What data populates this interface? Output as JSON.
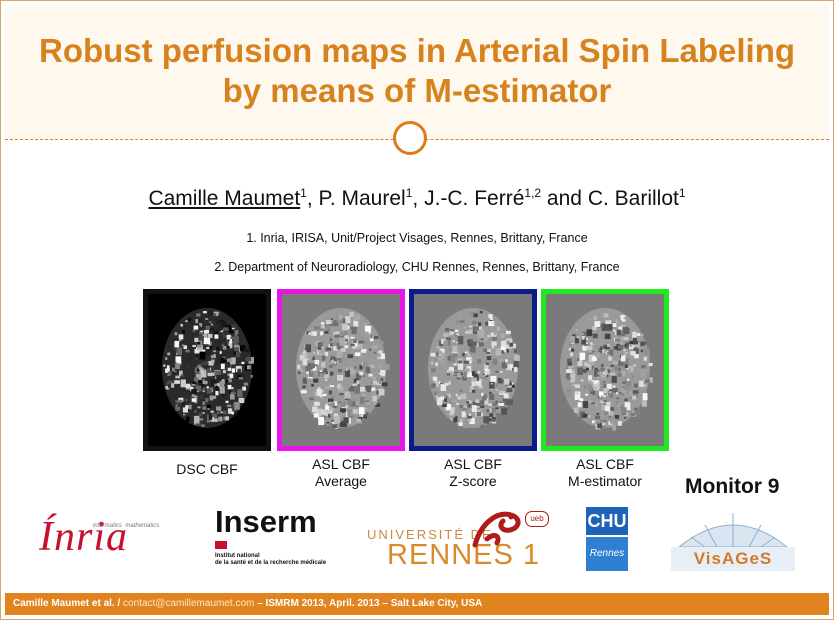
{
  "title": "Robust perfusion maps in Arterial Spin Labeling by means of M-estimator",
  "authors": [
    {
      "name": "Camille Maumet",
      "sup": "1",
      "sep": ", "
    },
    {
      "name": "P. Maurel",
      "sup": "1",
      "sep": ", "
    },
    {
      "name": "J.-C. Ferré",
      "sup": "1,2",
      "sep": " and "
    },
    {
      "name": "C. Barillot",
      "sup": "1",
      "sep": ""
    }
  ],
  "affiliations": [
    "1. Inria, IRISA, Unit/Project Visages, Rennes, Brittany, France",
    "2. Department of Neuroradiology, CHU Rennes, Rennes, Brittany, France"
  ],
  "panels": [
    {
      "line1": "DSC CBF",
      "line2": "",
      "border": "#111111",
      "bg": "#000000"
    },
    {
      "line1": "ASL CBF",
      "line2": "Average",
      "border": "#e815e8",
      "bg": "#7a7a7a"
    },
    {
      "line1": "ASL CBF",
      "line2": "Z-score",
      "border": "#0a1c8a",
      "bg": "#7a7a7a"
    },
    {
      "line1": "ASL CBF",
      "line2": "M-estimator",
      "border": "#22e822",
      "bg": "#7a7a7a"
    }
  ],
  "monitor": "Monitor 9",
  "logos": {
    "inria": "Ínria",
    "inria_tag1": "informatics",
    "inria_tag2": "mathematics",
    "inserm": "Inserm",
    "inserm_sub1": "Institut national",
    "inserm_sub2": "de la santé et de la recherche médicale",
    "rennes_top": "UNIVERSITÉ DE",
    "rennes_bottom": "RENNES 1",
    "rennes_badge": "ueb",
    "chu": "CHU",
    "chu_sub": "Rennes",
    "visages": "VisAGeS"
  },
  "footer": {
    "authors": "Camille Maumet et al.",
    "sep": " / ",
    "email": "contact@camillemaumet.com",
    "rest": " – ISMRM 2013, April. 2013 – Salt Lake City, USA"
  },
  "colors": {
    "accent": "#d6831f",
    "footer": "#e1841f"
  }
}
